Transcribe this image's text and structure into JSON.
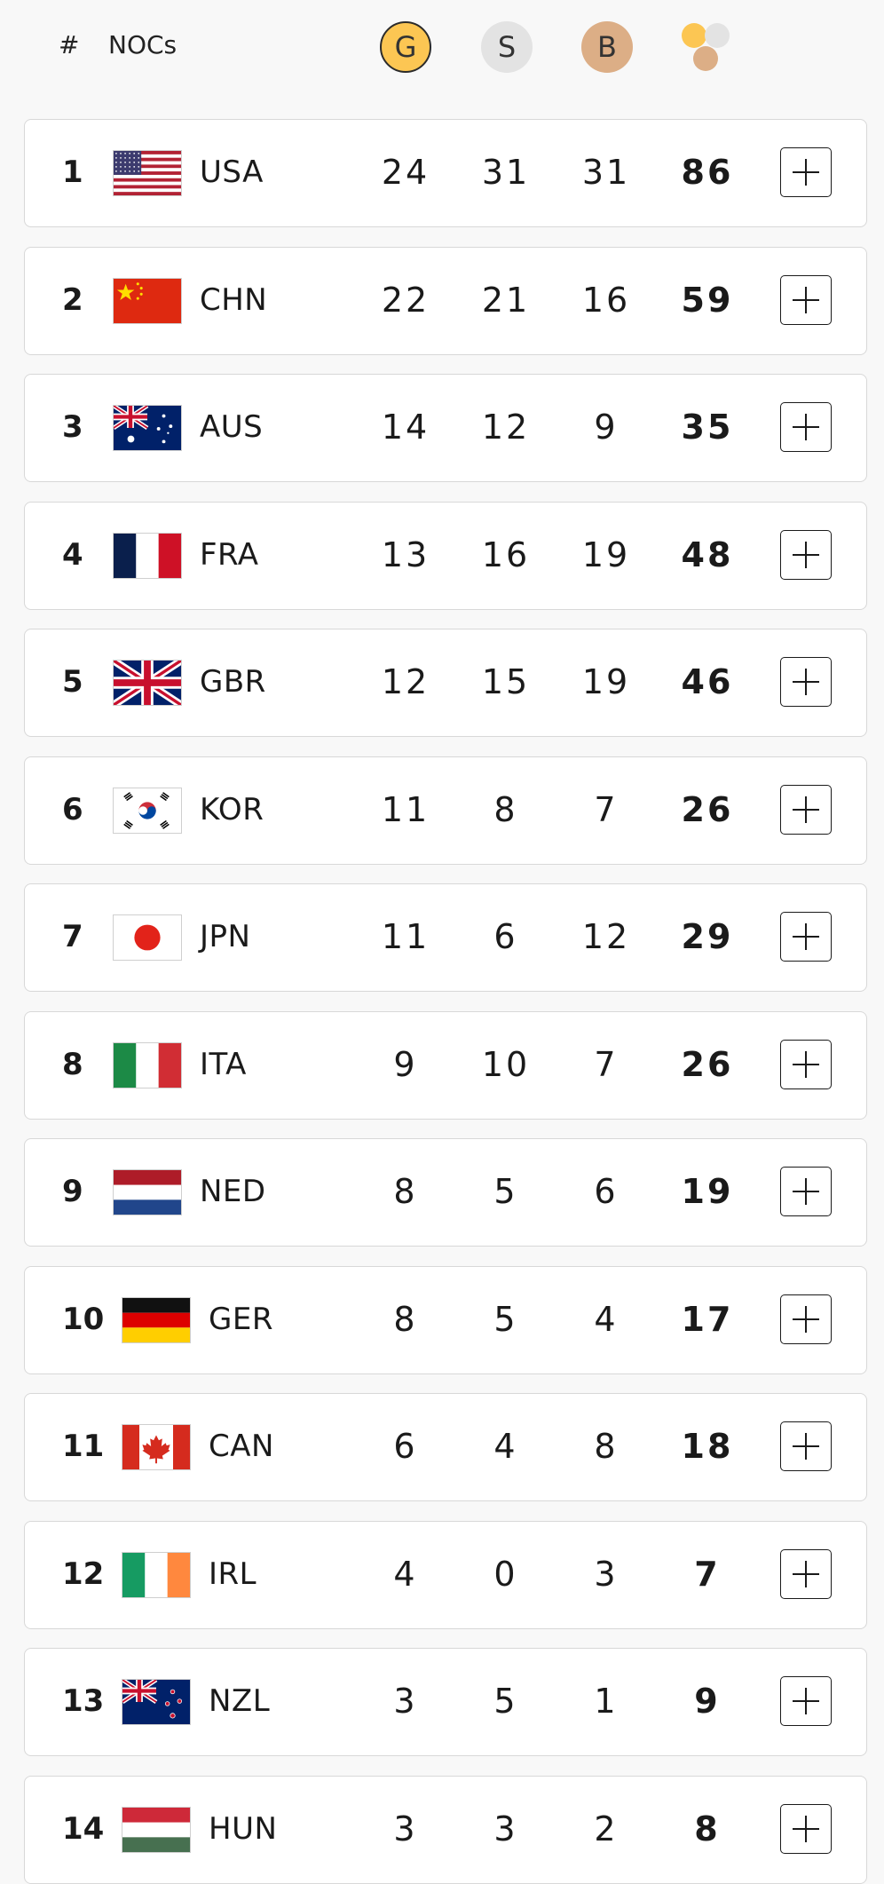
{
  "header": {
    "rank_label": "#",
    "nocs_label": "NOCs",
    "gold_label": "G",
    "silver_label": "S",
    "bronze_label": "B",
    "total_icon": "medals-total-icon"
  },
  "colors": {
    "gold": "#fcc653",
    "silver": "#e3e3e3",
    "bronze": "#dcae86"
  },
  "rows": [
    {
      "rank": "1",
      "noc": "USA",
      "gold": "24",
      "silver": "31",
      "bronze": "31",
      "total": "86"
    },
    {
      "rank": "2",
      "noc": "CHN",
      "gold": "22",
      "silver": "21",
      "bronze": "16",
      "total": "59"
    },
    {
      "rank": "3",
      "noc": "AUS",
      "gold": "14",
      "silver": "12",
      "bronze": "9",
      "total": "35"
    },
    {
      "rank": "4",
      "noc": "FRA",
      "gold": "13",
      "silver": "16",
      "bronze": "19",
      "total": "48"
    },
    {
      "rank": "5",
      "noc": "GBR",
      "gold": "12",
      "silver": "15",
      "bronze": "19",
      "total": "46"
    },
    {
      "rank": "6",
      "noc": "KOR",
      "gold": "11",
      "silver": "8",
      "bronze": "7",
      "total": "26"
    },
    {
      "rank": "7",
      "noc": "JPN",
      "gold": "11",
      "silver": "6",
      "bronze": "12",
      "total": "29"
    },
    {
      "rank": "8",
      "noc": "ITA",
      "gold": "9",
      "silver": "10",
      "bronze": "7",
      "total": "26"
    },
    {
      "rank": "9",
      "noc": "NED",
      "gold": "8",
      "silver": "5",
      "bronze": "6",
      "total": "19"
    },
    {
      "rank": "10",
      "noc": "GER",
      "gold": "8",
      "silver": "5",
      "bronze": "4",
      "total": "17"
    },
    {
      "rank": "11",
      "noc": "CAN",
      "gold": "6",
      "silver": "4",
      "bronze": "8",
      "total": "18"
    },
    {
      "rank": "12",
      "noc": "IRL",
      "gold": "4",
      "silver": "0",
      "bronze": "3",
      "total": "7"
    },
    {
      "rank": "13",
      "noc": "NZL",
      "gold": "3",
      "silver": "5",
      "bronze": "1",
      "total": "9"
    },
    {
      "rank": "14",
      "noc": "HUN",
      "gold": "3",
      "silver": "3",
      "bronze": "2",
      "total": "8"
    }
  ]
}
